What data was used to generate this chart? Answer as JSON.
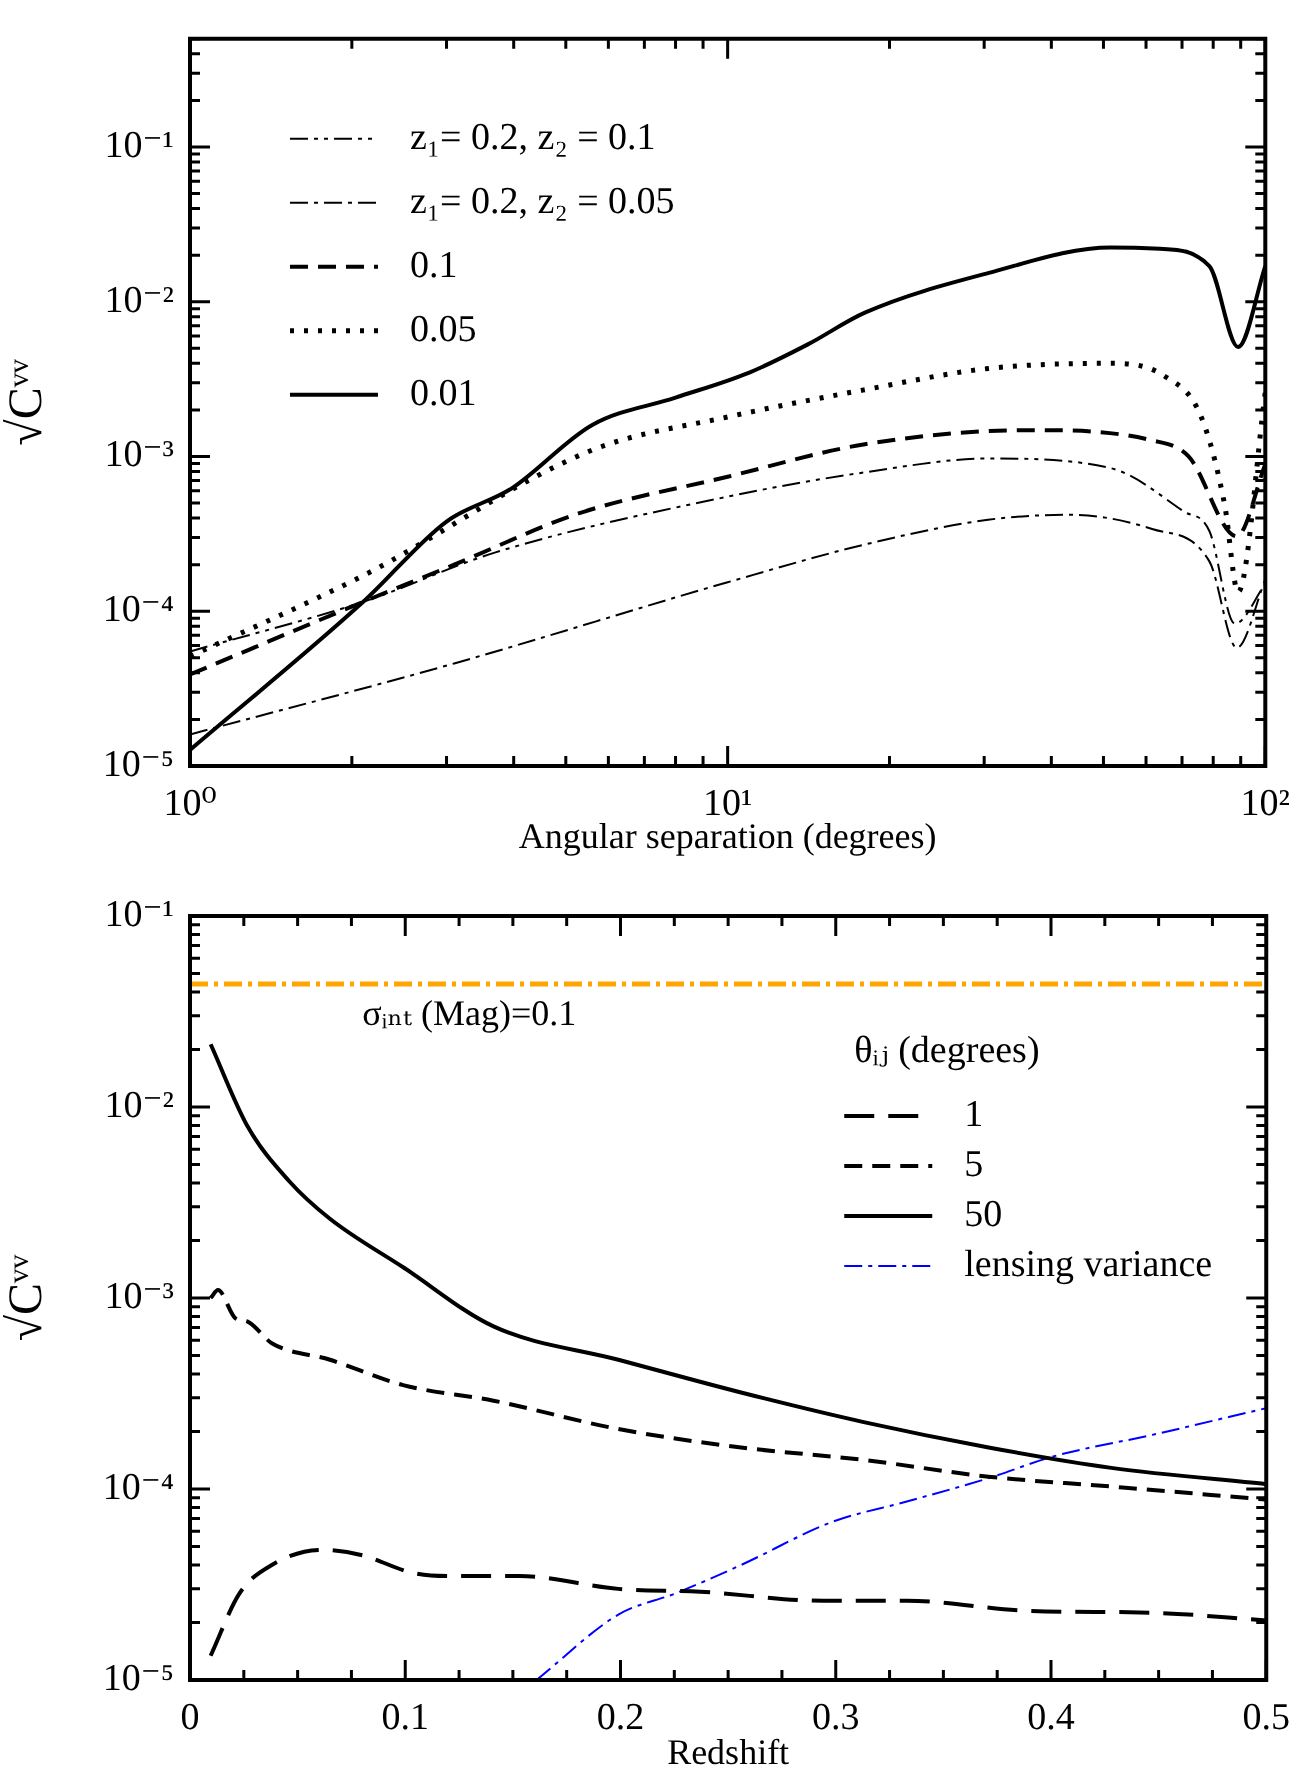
{
  "chart_data": [
    {
      "type": "line",
      "xlabel": "Angular separation (degrees)",
      "ylabel": "√Cᵛᵛ",
      "log": "xy",
      "legend": "top left",
      "xlim": [
        1,
        100
      ],
      "ylim": [
        1e-05,
        0.5
      ],
      "xticks": [
        {
          "value": 1,
          "label": "10⁰"
        },
        {
          "value": 2,
          "label": null
        },
        {
          "value": 3,
          "label": null
        },
        {
          "value": 4,
          "label": null
        },
        {
          "value": 5,
          "label": null
        },
        {
          "value": 6,
          "label": null
        },
        {
          "value": 7,
          "label": null
        },
        {
          "value": 8,
          "label": null
        },
        {
          "value": 9,
          "label": null
        },
        {
          "value": 10,
          "label": "10¹"
        },
        {
          "value": 20,
          "label": null
        },
        {
          "value": 30,
          "label": null
        },
        {
          "value": 40,
          "label": null
        },
        {
          "value": 50,
          "label": null
        },
        {
          "value": 60,
          "label": null
        },
        {
          "value": 70,
          "label": null
        },
        {
          "value": 80,
          "label": null
        },
        {
          "value": 90,
          "label": null
        },
        {
          "value": 100,
          "label": "10²"
        }
      ],
      "yticks": [
        {
          "value": 1e-05,
          "label": "10⁻⁵"
        },
        {
          "value": 2e-05,
          "label": null
        },
        {
          "value": 3e-05,
          "label": null
        },
        {
          "value": 4e-05,
          "label": null
        },
        {
          "value": 5e-05,
          "label": null
        },
        {
          "value": 6e-05,
          "label": null
        },
        {
          "value": 7e-05,
          "label": null
        },
        {
          "value": 8e-05,
          "label": null
        },
        {
          "value": 9e-05,
          "label": null
        },
        {
          "value": 0.0001,
          "label": "10⁻⁴"
        },
        {
          "value": 0.0002,
          "label": null
        },
        {
          "value": 0.0003,
          "label": null
        },
        {
          "value": 0.0004,
          "label": null
        },
        {
          "value": 0.0005,
          "label": null
        },
        {
          "value": 0.0006,
          "label": null
        },
        {
          "value": 0.0007,
          "label": null
        },
        {
          "value": 0.0008,
          "label": null
        },
        {
          "value": 0.0009,
          "label": null
        },
        {
          "value": 0.001,
          "label": "10⁻³"
        },
        {
          "value": 0.002,
          "label": null
        },
        {
          "value": 0.003,
          "label": null
        },
        {
          "value": 0.004,
          "label": null
        },
        {
          "value": 0.005,
          "label": null
        },
        {
          "value": 0.006,
          "label": null
        },
        {
          "value": 0.007,
          "label": null
        },
        {
          "value": 0.008,
          "label": null
        },
        {
          "value": 0.009,
          "label": null
        },
        {
          "value": 0.01,
          "label": "10⁻²"
        },
        {
          "value": 0.02,
          "label": null
        },
        {
          "value": 0.03,
          "label": null
        },
        {
          "value": 0.04,
          "label": null
        },
        {
          "value": 0.05,
          "label": null
        },
        {
          "value": 0.06,
          "label": null
        },
        {
          "value": 0.07,
          "label": null
        },
        {
          "value": 0.08,
          "label": null
        },
        {
          "value": 0.09,
          "label": null
        },
        {
          "value": 0.1,
          "label": "10⁻¹"
        },
        {
          "value": 0.2,
          "label": null
        },
        {
          "value": 0.3,
          "label": null
        },
        {
          "value": 0.4,
          "label": null
        },
        {
          "value": 0.5,
          "label": null
        }
      ],
      "series": [
        {
          "name": "z₁= 0.2, z₂ = 0.1",
          "color": "#000000",
          "line_style": "dashdotdot",
          "x": [
            1,
            2.1,
            3.7,
            10,
            18,
            30.5,
            51.6,
            70.6,
            78.7,
            87.8,
            100
          ],
          "values": [
            5.5e-05,
            0.000115,
            0.00024,
            0.00055,
            0.00079,
            0.00097,
            0.00084,
            0.00044,
            0.00033,
            8.3e-05,
            0.00015
          ]
        },
        {
          "name": "z₁= 0.2, z₂ = 0.05",
          "color": "#000000",
          "line_style": "dashdot",
          "x": [
            1,
            3.1,
            10,
            18,
            30.5,
            43,
            61.6,
            78.7,
            88.5,
            100
          ],
          "values": [
            1.6e-05,
            4.6e-05,
            0.000154,
            0.00027,
            0.00039,
            0.00042,
            0.00034,
            0.00021,
            5.8e-05,
            0.00016
          ]
        },
        {
          "name": "0.1",
          "color": "#000000",
          "line_style": "dashed",
          "x": [
            1,
            2.1,
            3.1,
            5.3,
            10,
            18,
            36.3,
            61.6,
            72,
            88.5,
            100
          ],
          "values": [
            3.9e-05,
            0.000115,
            0.0002,
            0.00043,
            0.00074,
            0.0012,
            0.00148,
            0.00127,
            0.001,
            0.000305,
            0.00089
          ]
        },
        {
          "name": "0.05",
          "color": "#000000",
          "line_style": "dotted",
          "x": [
            1,
            2.1,
            5.6,
            10,
            18,
            30.5,
            51.6,
            65,
            76,
            84,
            89,
            100
          ],
          "values": [
            5.1e-05,
            0.00017,
            0.0011,
            0.0018,
            0.0027,
            0.0037,
            0.004,
            0.0033,
            0.0018,
            0.00049,
            0.000133,
            0.0026
          ]
        },
        {
          "name": "0.01",
          "color": "#000000",
          "line_style": "solid",
          "x": [
            1,
            2.1,
            3,
            3.96,
            5.6,
            8,
            11,
            14.1,
            18,
            30.5,
            51.6,
            63.6,
            78.7,
            89,
            100
          ],
          "values": [
            1.27e-05,
            0.000115,
            0.00038,
            0.00062,
            0.0016,
            0.0024,
            0.0035,
            0.0053,
            0.0085,
            0.0153,
            0.0224,
            0.022,
            0.017,
            0.0051,
            0.017
          ]
        }
      ]
    },
    {
      "type": "line",
      "xlabel": "Redshift",
      "ylabel": "√Cᵛᵛ",
      "log": "y",
      "legend": "top right",
      "legend_title": "θᵢⱼ (degrees)",
      "xlim": [
        0,
        0.5
      ],
      "ylim": [
        1e-05,
        0.1
      ],
      "xticks": [
        0,
        {
          "value": 0.025,
          "label": null
        },
        {
          "value": 0.05,
          "label": null
        },
        {
          "value": 0.075,
          "label": null
        },
        0.1,
        {
          "value": 0.125,
          "label": null
        },
        {
          "value": 0.15,
          "label": null
        },
        {
          "value": 0.175,
          "label": null
        },
        0.2,
        {
          "value": 0.225,
          "label": null
        },
        {
          "value": 0.25,
          "label": null
        },
        {
          "value": 0.275,
          "label": null
        },
        0.3,
        {
          "value": 0.325,
          "label": null
        },
        {
          "value": 0.35,
          "label": null
        },
        {
          "value": 0.375,
          "label": null
        },
        0.4,
        {
          "value": 0.425,
          "label": null
        },
        {
          "value": 0.45,
          "label": null
        },
        {
          "value": 0.475,
          "label": null
        },
        0.5
      ],
      "yticks": [
        {
          "value": 1e-05,
          "label": "10⁻⁵"
        },
        {
          "value": 2e-05,
          "label": null
        },
        {
          "value": 3e-05,
          "label": null
        },
        {
          "value": 4e-05,
          "label": null
        },
        {
          "value": 5e-05,
          "label": null
        },
        {
          "value": 6e-05,
          "label": null
        },
        {
          "value": 7e-05,
          "label": null
        },
        {
          "value": 8e-05,
          "label": null
        },
        {
          "value": 9e-05,
          "label": null
        },
        {
          "value": 0.0001,
          "label": "10⁻⁴"
        },
        {
          "value": 0.0002,
          "label": null
        },
        {
          "value": 0.0003,
          "label": null
        },
        {
          "value": 0.0004,
          "label": null
        },
        {
          "value": 0.0005,
          "label": null
        },
        {
          "value": 0.0006,
          "label": null
        },
        {
          "value": 0.0007,
          "label": null
        },
        {
          "value": 0.0008,
          "label": null
        },
        {
          "value": 0.0009,
          "label": null
        },
        {
          "value": 0.001,
          "label": "10⁻³"
        },
        {
          "value": 0.002,
          "label": null
        },
        {
          "value": 0.003,
          "label": null
        },
        {
          "value": 0.004,
          "label": null
        },
        {
          "value": 0.005,
          "label": null
        },
        {
          "value": 0.006,
          "label": null
        },
        {
          "value": 0.007,
          "label": null
        },
        {
          "value": 0.008,
          "label": null
        },
        {
          "value": 0.009,
          "label": null
        },
        {
          "value": 0.01,
          "label": "10⁻²"
        },
        {
          "value": 0.02,
          "label": null
        },
        {
          "value": 0.03,
          "label": null
        },
        {
          "value": 0.04,
          "label": null
        },
        {
          "value": 0.05,
          "label": null
        },
        {
          "value": 0.06,
          "label": null
        },
        {
          "value": 0.07,
          "label": null
        },
        {
          "value": 0.08,
          "label": null
        },
        {
          "value": 0.09,
          "label": null
        },
        {
          "value": 0.1,
          "label": "10⁻¹"
        }
      ],
      "ref_lines": [
        {
          "axis": "y",
          "value": 0.044,
          "color": "#ffa500",
          "line_style": "dashdot"
        }
      ],
      "annotations": [
        "σᵢₙₜ (Mag)=0.1"
      ],
      "series": [
        {
          "name": "1",
          "color": "#000000",
          "line_style": "longdash",
          "x": [
            0.0096,
            0.023,
            0.038,
            0.061,
            0.08,
            0.103,
            0.122,
            0.153,
            0.199,
            0.237,
            0.294,
            0.333,
            0.39,
            0.447,
            0.5
          ],
          "values": [
            1.34e-05,
            2.84e-05,
            4e-05,
            4.8e-05,
            4.5e-05,
            3.65e-05,
            3.5e-05,
            3.5e-05,
            3e-05,
            2.9e-05,
            2.6e-05,
            2.6e-05,
            2.3e-05,
            2.25e-05,
            2.05e-05
          ]
        },
        {
          "name": "5",
          "color": "#000000",
          "line_style": "dashed",
          "x": [
            0.0096,
            0.013,
            0.021,
            0.027,
            0.038,
            0.065,
            0.099,
            0.141,
            0.199,
            0.256,
            0.313,
            0.371,
            0.428,
            0.5
          ],
          "values": [
            0.001,
            0.0011,
            0.000785,
            0.00075,
            0.00058,
            0.000475,
            0.00035,
            0.00029,
            0.000206,
            0.000165,
            0.000142,
            0.000116,
            0.000103,
            8.8e-05
          ]
        },
        {
          "name": "50",
          "color": "#000000",
          "line_style": "solid",
          "x": [
            0.0096,
            0.0268,
            0.046,
            0.065,
            0.0994,
            0.141,
            0.199,
            0.256,
            0.313,
            0.371,
            0.428,
            0.5
          ],
          "values": [
            0.0213,
            0.0079,
            0.0041,
            0.0026,
            0.00144,
            0.00071,
            0.000475,
            0.00032,
            0.000224,
            0.000165,
            0.000129,
            0.000106
          ]
        },
        {
          "name": "lensing variance",
          "color": "#0000ff",
          "line_style": "dashdot",
          "x": [
            0.161,
            0.199,
            0.2255,
            0.256,
            0.298,
            0.333,
            0.371,
            0.401,
            0.447,
            0.5
          ],
          "values": [
            1e-05,
            2.2e-05,
            2.84e-05,
            4e-05,
            6.7e-05,
            8.6e-05,
            0.000114,
            0.000148,
            0.000192,
            0.000265
          ]
        }
      ]
    }
  ]
}
